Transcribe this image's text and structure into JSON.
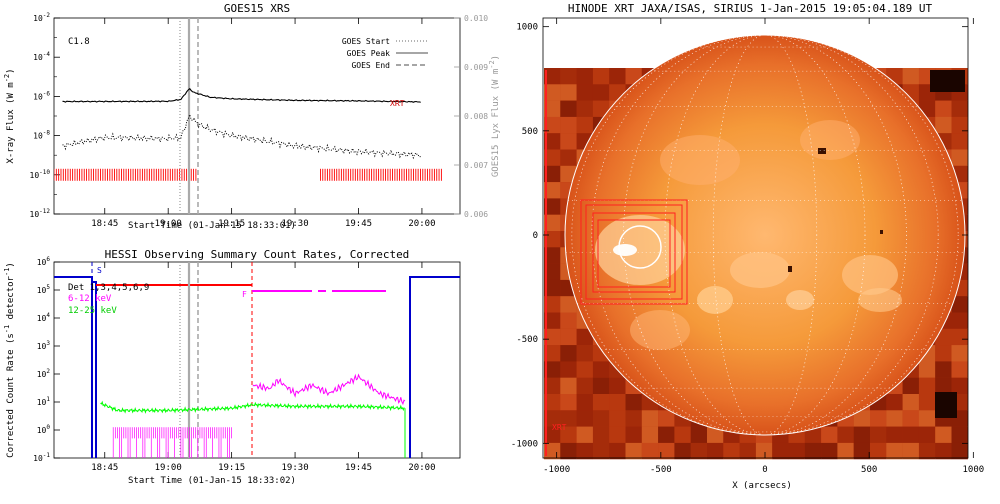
{
  "chart_data": [
    {
      "type": "line",
      "title": "GOES15 XRS",
      "xlabel": "Start Time (01-Jan-15 18:33:01)",
      "ylabel": "X-ray Flux (W m",
      "ylabel_unit": "-2",
      "ylabel_right": "GOES15 Lyx Flux (W m",
      "ylabel_right_unit": "-2",
      "flare_class": "C1.8",
      "xrt_marker": "XRT",
      "y_log": true,
      "ylim_exponents": [
        -12,
        -2
      ],
      "ytick_exponents": [
        -2,
        -4,
        -6,
        -8,
        -10,
        -12
      ],
      "ytick_base": "10",
      "y2lim": [
        0.006,
        0.01
      ],
      "y2ticks": [
        "0.010",
        "0.009",
        "0.008",
        "0.007",
        "0.006"
      ],
      "xtick_labels": [
        "18:45",
        "19:00",
        "19:15",
        "19:30",
        "19:45",
        "20:00"
      ],
      "legend": [
        {
          "label": "GOES Start",
          "style": "dotted"
        },
        {
          "label": "GOES Peak",
          "style": "solid"
        },
        {
          "label": "GOES End",
          "style": "dashed"
        }
      ],
      "series": [
        {
          "name": "",
          "color": "#000000",
          "x": [
            "18:35",
            "18:45",
            "19:00",
            "19:03",
            "19:05",
            "19:06",
            "19:08",
            "19:10",
            "19:15",
            "19:30",
            "19:45",
            "20:00"
          ],
          "y": [
            5.5e-07,
            5.5e-07,
            5.6e-07,
            7e-07,
            2.5e-06,
            1.6e-06,
            1.2e-06,
            9e-07,
            7.5e-07,
            6.3e-07,
            5.9e-07,
            5.2e-07
          ]
        },
        {
          "name": "",
          "color": "#000000",
          "style": "dotted",
          "x": [
            "18:35",
            "18:45",
            "19:00",
            "19:03",
            "19:05",
            "19:07",
            "19:10",
            "19:15",
            "19:30",
            "19:45",
            "20:00"
          ],
          "y": [
            3e-09,
            8e-09,
            7e-09,
            8e-09,
            1e-07,
            4e-08,
            2e-08,
            1e-08,
            3e-09,
            1.5e-09,
            1e-09
          ]
        }
      ]
    },
    {
      "type": "line",
      "title": "HESSI Observing Summary Count Rates, Corrected",
      "xlabel": "Start Time (01-Jan-15 18:33:02)",
      "ylabel": "Corrected Count Rate (s",
      "ylabel_unit": "-1",
      "ylabel_tail": " detector",
      "ylabel_tail_unit": "-1",
      "y_log": true,
      "ylim_exponents": [
        -1,
        6
      ],
      "ytick_exponents": [
        6,
        5,
        4,
        3,
        2,
        1,
        0,
        -1
      ],
      "ytick_base": "10",
      "xtick_labels": [
        "18:45",
        "19:00",
        "19:15",
        "19:30",
        "19:45",
        "20:00"
      ],
      "legend_title": "Det 1,3,4,5,6,9",
      "annotations": [
        "S",
        "F"
      ],
      "series": [
        {
          "name": "6-12 keV",
          "color": "#ff00ff",
          "x": [
            "19:20",
            "19:24",
            "19:26",
            "19:30",
            "19:34",
            "19:38",
            "19:45",
            "19:50",
            "19:56"
          ],
          "y": [
            40,
            30,
            60,
            20,
            40,
            20,
            80,
            20,
            10
          ]
        },
        {
          "name": "12-25 keV",
          "color": "#00ff00",
          "x": [
            "18:44",
            "18:48",
            "19:00",
            "19:15",
            "19:20",
            "19:30",
            "19:45",
            "19:56"
          ],
          "y": [
            9,
            5,
            5,
            6,
            8,
            7,
            7,
            6
          ]
        }
      ]
    },
    {
      "type": "heatmap",
      "title": "HINODE XRT JAXA/ISAS, SIRIUS   1-Jan-2015 19:05:04.189 UT",
      "xlabel": "X (arcsecs)",
      "ylabel": "",
      "xlim": [
        -1100,
        1100
      ],
      "ylim": [
        -1100,
        1100
      ],
      "xtick_labels": [
        "-1000",
        "-500",
        "0",
        "500",
        "1000"
      ],
      "ytick_labels": [
        "1000",
        "500",
        "0",
        "-500",
        "-1000"
      ],
      "corner_label": "XRT"
    }
  ]
}
